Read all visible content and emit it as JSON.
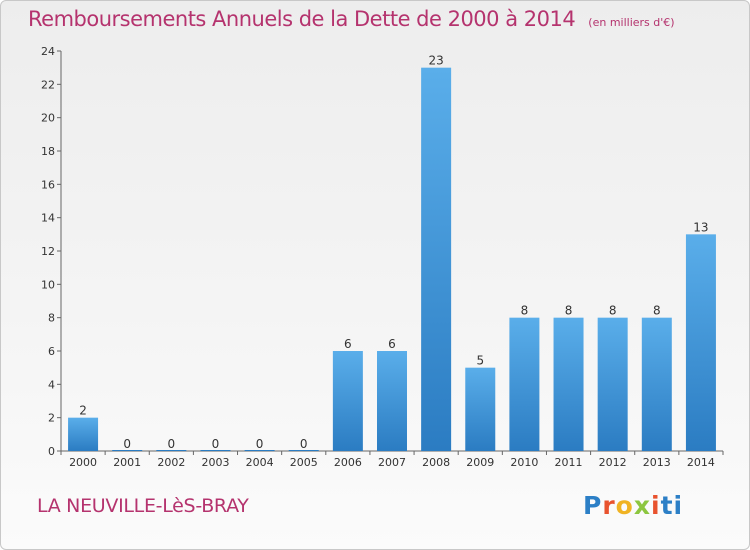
{
  "chart_data": {
    "type": "bar",
    "title": "Remboursements Annuels de la Dette de 2000 à 2014",
    "subtitle": "(en milliers d'€)",
    "categories": [
      "2000",
      "2001",
      "2002",
      "2003",
      "2004",
      "2005",
      "2006",
      "2007",
      "2008",
      "2009",
      "2010",
      "2011",
      "2012",
      "2013",
      "2014"
    ],
    "values": [
      2,
      0,
      0,
      0,
      0,
      0,
      6,
      6,
      23,
      5,
      8,
      8,
      8,
      8,
      13
    ],
    "ylim": [
      0,
      24
    ],
    "yticks": [
      0,
      2,
      4,
      6,
      8,
      10,
      12,
      14,
      16,
      18,
      20,
      22,
      24
    ],
    "grid": false,
    "bar_color": "#3f95d8"
  },
  "commune": "LA NEUVILLE-LèS-BRAY",
  "logo": {
    "letters": [
      "P",
      "r",
      "o",
      "x",
      "i",
      "t",
      "i"
    ]
  }
}
